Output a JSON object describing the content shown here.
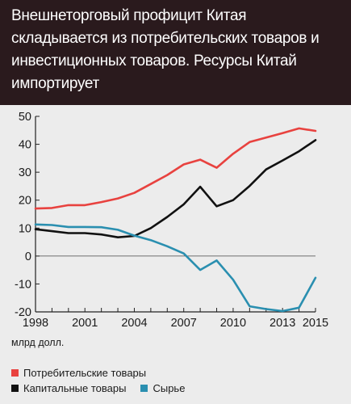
{
  "chart_data": {
    "type": "line",
    "title": "Внешнеторговый профицит Китая складывается из потребительских товаров и инвестиционных товаров. Ресурсы Китай импортирует",
    "unit_label": "млрд долл.",
    "x": [
      1998,
      1999,
      2000,
      2001,
      2002,
      2003,
      2004,
      2005,
      2006,
      2007,
      2008,
      2009,
      2010,
      2011,
      2012,
      2013,
      2014,
      2015
    ],
    "x_ticks": [
      1998,
      2001,
      2004,
      2007,
      2010,
      2013,
      2015
    ],
    "xlim": [
      1998,
      2015
    ],
    "ylim": [
      -20,
      50
    ],
    "y_ticks": [
      50,
      40,
      30,
      20,
      10,
      0,
      -10,
      -20
    ],
    "grid": false,
    "legend_position": "bottom",
    "series": [
      {
        "name": "Потребительские товары",
        "color": "#e8423f",
        "values": [
          17,
          17.2,
          18.2,
          18.2,
          19.3,
          20.6,
          22.6,
          25.8,
          29,
          32.8,
          34.5,
          31.6,
          36.6,
          40.8,
          42.4,
          44,
          45.7,
          44.8
        ]
      },
      {
        "name": "Капитальные товары",
        "color": "#111111",
        "values": [
          9.6,
          8.9,
          8.2,
          8.2,
          7.7,
          6.7,
          7.2,
          10,
          14,
          18.5,
          24.8,
          17.8,
          20,
          25.1,
          31,
          34.2,
          37.5,
          41.5
        ]
      },
      {
        "name": "Сырье",
        "color": "#2a8fb0",
        "values": [
          11.3,
          11.1,
          10.4,
          10.4,
          10.3,
          9.4,
          7.3,
          5.7,
          3.5,
          0.9,
          -5,
          -1.6,
          -8.5,
          -18,
          -19,
          -19.7,
          -18.5,
          -7.8
        ]
      }
    ]
  }
}
